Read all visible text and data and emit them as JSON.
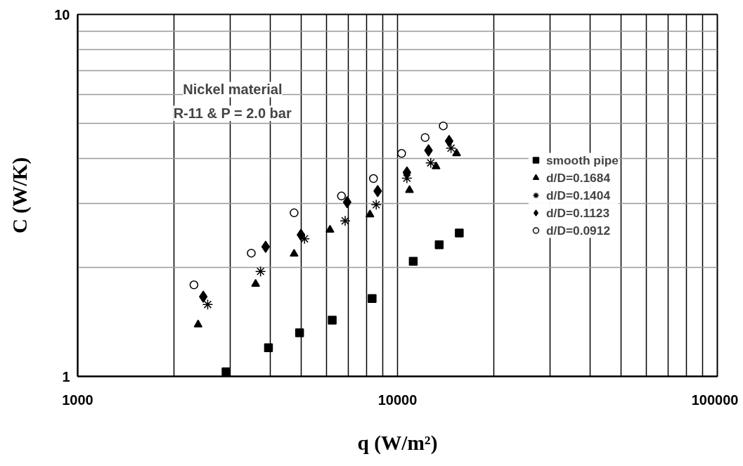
{
  "chart_data": {
    "type": "scatter",
    "xlabel": "q (W/m²)",
    "ylabel": "C (W/K)",
    "annotations": [
      "Nickel material",
      "R-11 & P = 2.0 bar"
    ],
    "log": "xy",
    "grid": true,
    "legend": "right",
    "xlim": [
      1000,
      100000
    ],
    "ylim": [
      1,
      10
    ],
    "xticks": [
      1000,
      {
        "value": 2000,
        "label": null
      },
      {
        "value": 3000,
        "label": null
      },
      {
        "value": 4000,
        "label": null
      },
      {
        "value": 5000,
        "label": null
      },
      {
        "value": 6000,
        "label": null
      },
      {
        "value": 7000,
        "label": null
      },
      {
        "value": 8000,
        "label": null
      },
      {
        "value": 9000,
        "label": null
      },
      10000,
      {
        "value": 20000,
        "label": null
      },
      {
        "value": 30000,
        "label": null
      },
      {
        "value": 40000,
        "label": null
      },
      {
        "value": 50000,
        "label": null
      },
      {
        "value": 60000,
        "label": null
      },
      {
        "value": 70000,
        "label": null
      },
      {
        "value": 80000,
        "label": null
      },
      {
        "value": 90000,
        "label": null
      },
      100000
    ],
    "yticks": [
      1,
      {
        "value": 2,
        "label": null
      },
      {
        "value": 3,
        "label": null
      },
      {
        "value": 4,
        "label": null
      },
      {
        "value": 5,
        "label": null
      },
      {
        "value": 6,
        "label": null
      },
      {
        "value": 7,
        "label": null
      },
      {
        "value": 8,
        "label": null
      },
      {
        "value": 9,
        "label": null
      },
      10
    ],
    "series": [
      {
        "name": "smooth pipe",
        "color": "#000000",
        "marker": "square",
        "x": [
          2910,
          3950,
          4940,
          6250,
          8330,
          11200,
          13500,
          15600
        ],
        "values": [
          1.03,
          1.2,
          1.32,
          1.43,
          1.64,
          2.08,
          2.31,
          2.49
        ]
      },
      {
        "name": "d/D=0.1684",
        "color": "#000000",
        "marker": "triangle",
        "x": [
          2380,
          3600,
          4750,
          6150,
          8200,
          10900,
          13200,
          15300
        ],
        "values": [
          1.39,
          1.8,
          2.18,
          2.54,
          2.8,
          3.27,
          3.8,
          4.13
        ]
      },
      {
        "name": "d/D=0.1404",
        "color": "#000000",
        "marker": "cross",
        "x": [
          2550,
          3730,
          5120,
          6860,
          8580,
          10700,
          12700,
          14700
        ],
        "values": [
          1.58,
          1.95,
          2.4,
          2.69,
          2.98,
          3.53,
          3.89,
          4.27
        ]
      },
      {
        "name": "d/D=0.1123",
        "color": "#000000",
        "marker": "diamond",
        "x": [
          2470,
          3870,
          4990,
          6960,
          8670,
          10700,
          12500,
          14500
        ],
        "values": [
          1.66,
          2.28,
          2.46,
          3.03,
          3.25,
          3.66,
          4.21,
          4.47
        ]
      },
      {
        "name": "d/D=0.0912",
        "color": "#000000",
        "marker": "circle",
        "x": [
          2310,
          3490,
          4750,
          6680,
          8410,
          10300,
          12200,
          13900
        ],
        "values": [
          1.79,
          2.19,
          2.83,
          3.15,
          3.52,
          4.13,
          4.57,
          4.92
        ]
      }
    ]
  }
}
